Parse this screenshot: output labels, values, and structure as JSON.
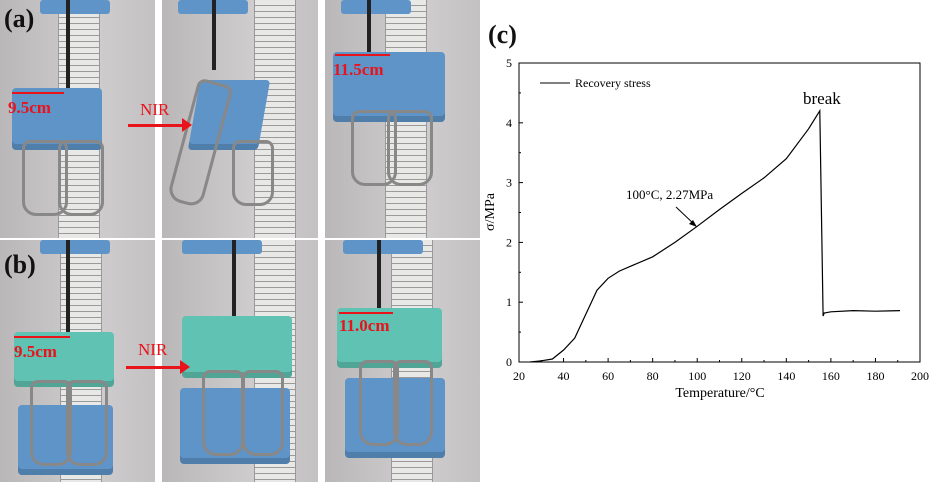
{
  "panels": {
    "a": {
      "label": "(a)",
      "initial": "9.5cm",
      "stimulus": "NIR",
      "final": "11.5cm"
    },
    "b": {
      "label": "(b)",
      "initial": "9.5cm",
      "stimulus": "NIR",
      "final": "11.0cm"
    },
    "c": {
      "label": "(c)"
    }
  },
  "colors": {
    "annotation": "#e8131b",
    "clip_blue": "#5f94c9",
    "clip_green": "#5fc2b2"
  },
  "chart_data": {
    "type": "line",
    "title": "",
    "xlabel": "Temperature/°C",
    "ylabel": "σ/MPa",
    "xlim": [
      20,
      200
    ],
    "ylim": [
      0,
      5
    ],
    "xticks": [
      20,
      40,
      60,
      80,
      100,
      120,
      140,
      160,
      180,
      200
    ],
    "yticks": [
      0,
      1,
      2,
      3,
      4,
      5
    ],
    "grid": false,
    "legend": {
      "position": "top-left",
      "entries": [
        "Recovery stress"
      ]
    },
    "series": [
      {
        "name": "Recovery stress",
        "x": [
          25,
          30,
          35,
          40,
          45,
          50,
          55,
          60,
          65,
          70,
          80,
          90,
          100,
          110,
          120,
          130,
          140,
          150,
          155,
          156.5,
          157,
          160,
          170,
          180,
          191
        ],
        "y": [
          0,
          0.02,
          0.05,
          0.2,
          0.4,
          0.8,
          1.2,
          1.4,
          1.52,
          1.6,
          1.76,
          2.0,
          2.27,
          2.55,
          2.82,
          3.08,
          3.4,
          3.9,
          4.2,
          0.77,
          0.82,
          0.84,
          0.86,
          0.85,
          0.86
        ]
      }
    ],
    "annotations": [
      {
        "text": "break",
        "x": 155,
        "y": 4.2
      },
      {
        "text": "100°C, 2.27MPa",
        "x": 100,
        "y": 2.27
      }
    ]
  }
}
